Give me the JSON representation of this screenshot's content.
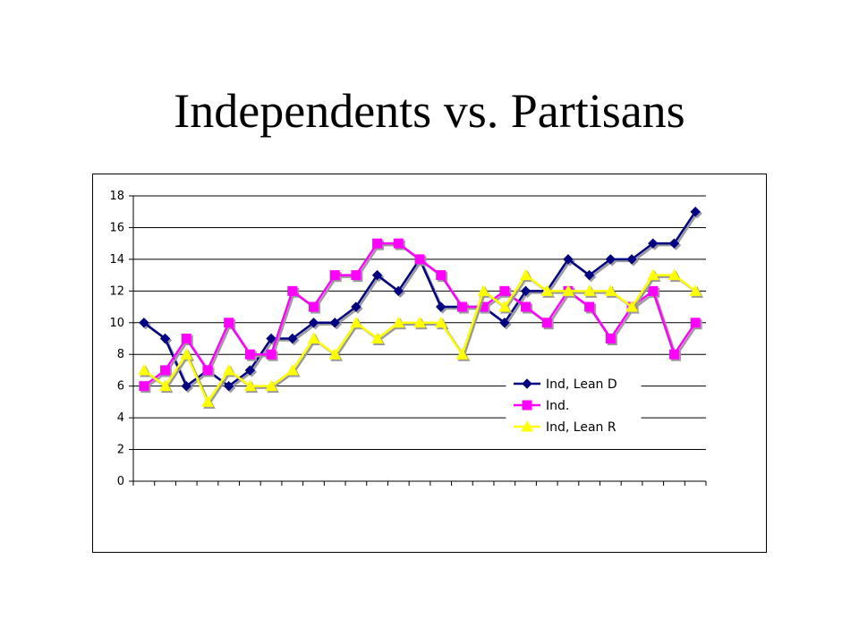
{
  "slide": {
    "title": "Independents vs. Partisans"
  },
  "chart_data": {
    "type": "line",
    "title": "",
    "xlabel": "",
    "ylabel": "",
    "ylim": [
      0,
      18
    ],
    "yticks": [
      0,
      2,
      4,
      6,
      8,
      10,
      12,
      14,
      16,
      18
    ],
    "grid": "horizontal",
    "legend_position": "lower-right",
    "point_count": 27,
    "series": [
      {
        "name": "Ind, Lean D",
        "color": "#000080",
        "marker": "diamond",
        "values": [
          10,
          9,
          6,
          7,
          6,
          7,
          9,
          9,
          10,
          10,
          11,
          13,
          12,
          14,
          11,
          11,
          11,
          10,
          12,
          12,
          14,
          13,
          14,
          14,
          15,
          15,
          17
        ]
      },
      {
        "name": "Ind.",
        "color": "#FF00FF",
        "marker": "square",
        "values": [
          6,
          7,
          9,
          7,
          10,
          8,
          8,
          12,
          11,
          13,
          13,
          15,
          15,
          14,
          13,
          11,
          11,
          12,
          11,
          10,
          12,
          11,
          9,
          11,
          12,
          8,
          10
        ]
      },
      {
        "name": "Ind, Lean R",
        "color": "#FFFF00",
        "marker": "triangle",
        "values": [
          7,
          6,
          8,
          5,
          7,
          6,
          6,
          7,
          9,
          8,
          10,
          9,
          10,
          10,
          10,
          8,
          12,
          11,
          13,
          12,
          12,
          12,
          12,
          11,
          13,
          13,
          12
        ]
      }
    ]
  }
}
